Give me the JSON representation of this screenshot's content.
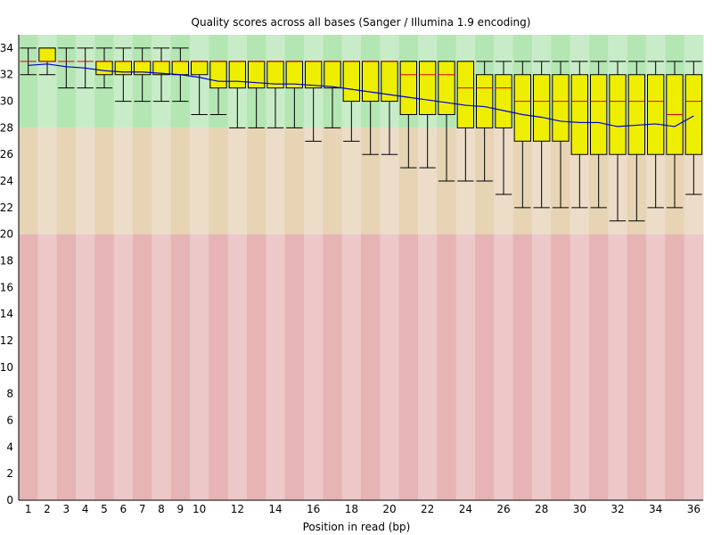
{
  "chart_data": {
    "type": "boxplot",
    "title": "Quality scores across all bases (Sanger / Illumina 1.9 encoding)",
    "xlabel": "Position in read (bp)",
    "ylabel": "",
    "ylim": [
      0,
      35
    ],
    "y_ticks": [
      0,
      2,
      4,
      6,
      8,
      10,
      12,
      14,
      16,
      18,
      20,
      22,
      24,
      26,
      28,
      30,
      32,
      34
    ],
    "x_tick_labels": [
      "1",
      "2",
      "3",
      "4",
      "5",
      "6",
      "7",
      "8",
      "9",
      "10",
      "12",
      "14",
      "16",
      "18",
      "20",
      "22",
      "24",
      "26",
      "28",
      "30",
      "32",
      "34",
      "36"
    ],
    "x_tick_positions": [
      1,
      2,
      3,
      4,
      5,
      6,
      7,
      8,
      9,
      10,
      12,
      14,
      16,
      18,
      20,
      22,
      24,
      26,
      28,
      30,
      32,
      34,
      36
    ],
    "positions": [
      1,
      2,
      3,
      4,
      5,
      6,
      7,
      8,
      9,
      10,
      11,
      12,
      13,
      14,
      15,
      16,
      17,
      18,
      19,
      20,
      21,
      22,
      23,
      24,
      25,
      26,
      27,
      28,
      29,
      30,
      31,
      32,
      33,
      34,
      35,
      36
    ],
    "box_q1": [
      33,
      33,
      33,
      33,
      32,
      32,
      32,
      32,
      32,
      32,
      31,
      31,
      31,
      31,
      31,
      31,
      31,
      30,
      30,
      30,
      29,
      29,
      29,
      28,
      28,
      28,
      27,
      27,
      27,
      26,
      26,
      26,
      26,
      26,
      26,
      26
    ],
    "box_q3": [
      33,
      34,
      33,
      33,
      33,
      33,
      33,
      33,
      33,
      33,
      33,
      33,
      33,
      33,
      33,
      33,
      33,
      33,
      33,
      33,
      33,
      33,
      33,
      33,
      32,
      32,
      32,
      32,
      32,
      32,
      32,
      32,
      32,
      32,
      32,
      32
    ],
    "median": [
      33,
      33,
      33,
      33,
      33,
      33,
      33,
      33,
      33,
      33,
      33,
      33,
      33,
      33,
      33,
      33,
      33,
      33,
      33,
      33,
      32,
      32,
      32,
      31,
      31,
      31,
      30,
      30,
      30,
      30,
      30,
      30,
      30,
      30,
      29,
      30
    ],
    "whisker_low": [
      32,
      32,
      31,
      31,
      31,
      30,
      30,
      30,
      30,
      29,
      29,
      28,
      28,
      28,
      28,
      27,
      28,
      27,
      26,
      26,
      25,
      25,
      24,
      24,
      24,
      23,
      22,
      22,
      22,
      22,
      22,
      21,
      21,
      22,
      22,
      23
    ],
    "whisker_high": [
      34,
      34,
      34,
      34,
      34,
      34,
      34,
      34,
      34,
      33,
      33,
      33,
      33,
      33,
      33,
      33,
      33,
      33,
      33,
      33,
      33,
      33,
      33,
      33,
      33,
      33,
      33,
      33,
      33,
      33,
      33,
      33,
      33,
      33,
      33,
      33
    ],
    "mean": [
      32.7,
      32.8,
      32.6,
      32.5,
      32.3,
      32.2,
      32.2,
      32.1,
      32.0,
      31.8,
      31.5,
      31.5,
      31.4,
      31.3,
      31.3,
      31.2,
      31.1,
      30.9,
      30.7,
      30.5,
      30.3,
      30.1,
      29.9,
      29.7,
      29.6,
      29.3,
      29.0,
      28.8,
      28.5,
      28.4,
      28.4,
      28.1,
      28.2,
      28.3,
      28.1,
      28.9
    ],
    "zones": [
      {
        "from": 28,
        "to": 35,
        "color_a": "#b4e6b4",
        "color_b": "#c8ecc8"
      },
      {
        "from": 20,
        "to": 28,
        "color_a": "#e6d4b4",
        "color_b": "#ecdcc8"
      },
      {
        "from": 0,
        "to": 20,
        "color_a": "#e6b4b4",
        "color_b": "#ecc8c8"
      }
    ],
    "colors": {
      "box_fill": "#eeee00",
      "box_stroke": "#000000",
      "median": "#dd0000",
      "mean_line": "#0000cc",
      "axis": "#000000"
    },
    "grid": false,
    "legend": "none"
  }
}
